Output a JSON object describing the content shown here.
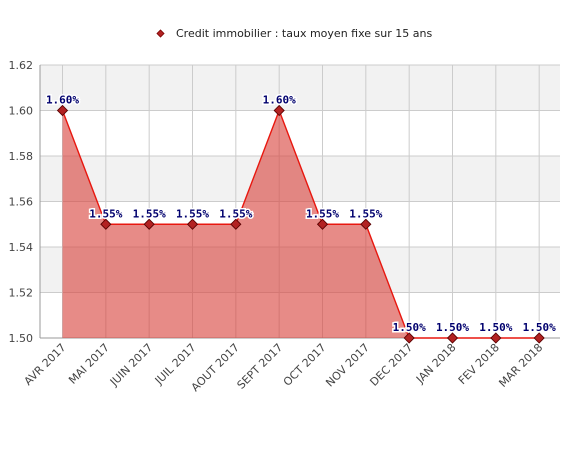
{
  "chart_data": {
    "type": "area",
    "categories": [
      "AVR 2017",
      "MAI 2017",
      "JUIN 2017",
      "JUIL 2017",
      "AOUT 2017",
      "SEPT 2017",
      "OCT 2017",
      "NOV 2017",
      "DEC 2017",
      "JAN 2018",
      "FEV 2018",
      "MAR 2018"
    ],
    "series": [
      {
        "name": "Credit immobilier : taux moyen fixe sur 15 ans",
        "values": [
          1.6,
          1.55,
          1.55,
          1.55,
          1.55,
          1.6,
          1.55,
          1.55,
          1.5,
          1.5,
          1.5,
          1.5
        ],
        "labels": [
          "1.60%",
          "1.55%",
          "1.55%",
          "1.55%",
          "1.55%",
          "1.60%",
          "1.55%",
          "1.55%",
          "1.50%",
          "1.50%",
          "1.50%",
          "1.50%"
        ]
      }
    ],
    "yticks": [
      "1.50",
      "1.52",
      "1.54",
      "1.56",
      "1.58",
      "1.60",
      "1.62"
    ],
    "ylim": [
      1.5,
      1.62
    ],
    "title": "",
    "xlabel": "",
    "ylabel": "",
    "legend_position": "top",
    "grid": true,
    "colors": {
      "line": "#e8170f",
      "area": "#d9443e",
      "marker": "#b22222",
      "label": "#00006e",
      "band": "#f2f2f2",
      "grid": "#cccccc"
    }
  }
}
